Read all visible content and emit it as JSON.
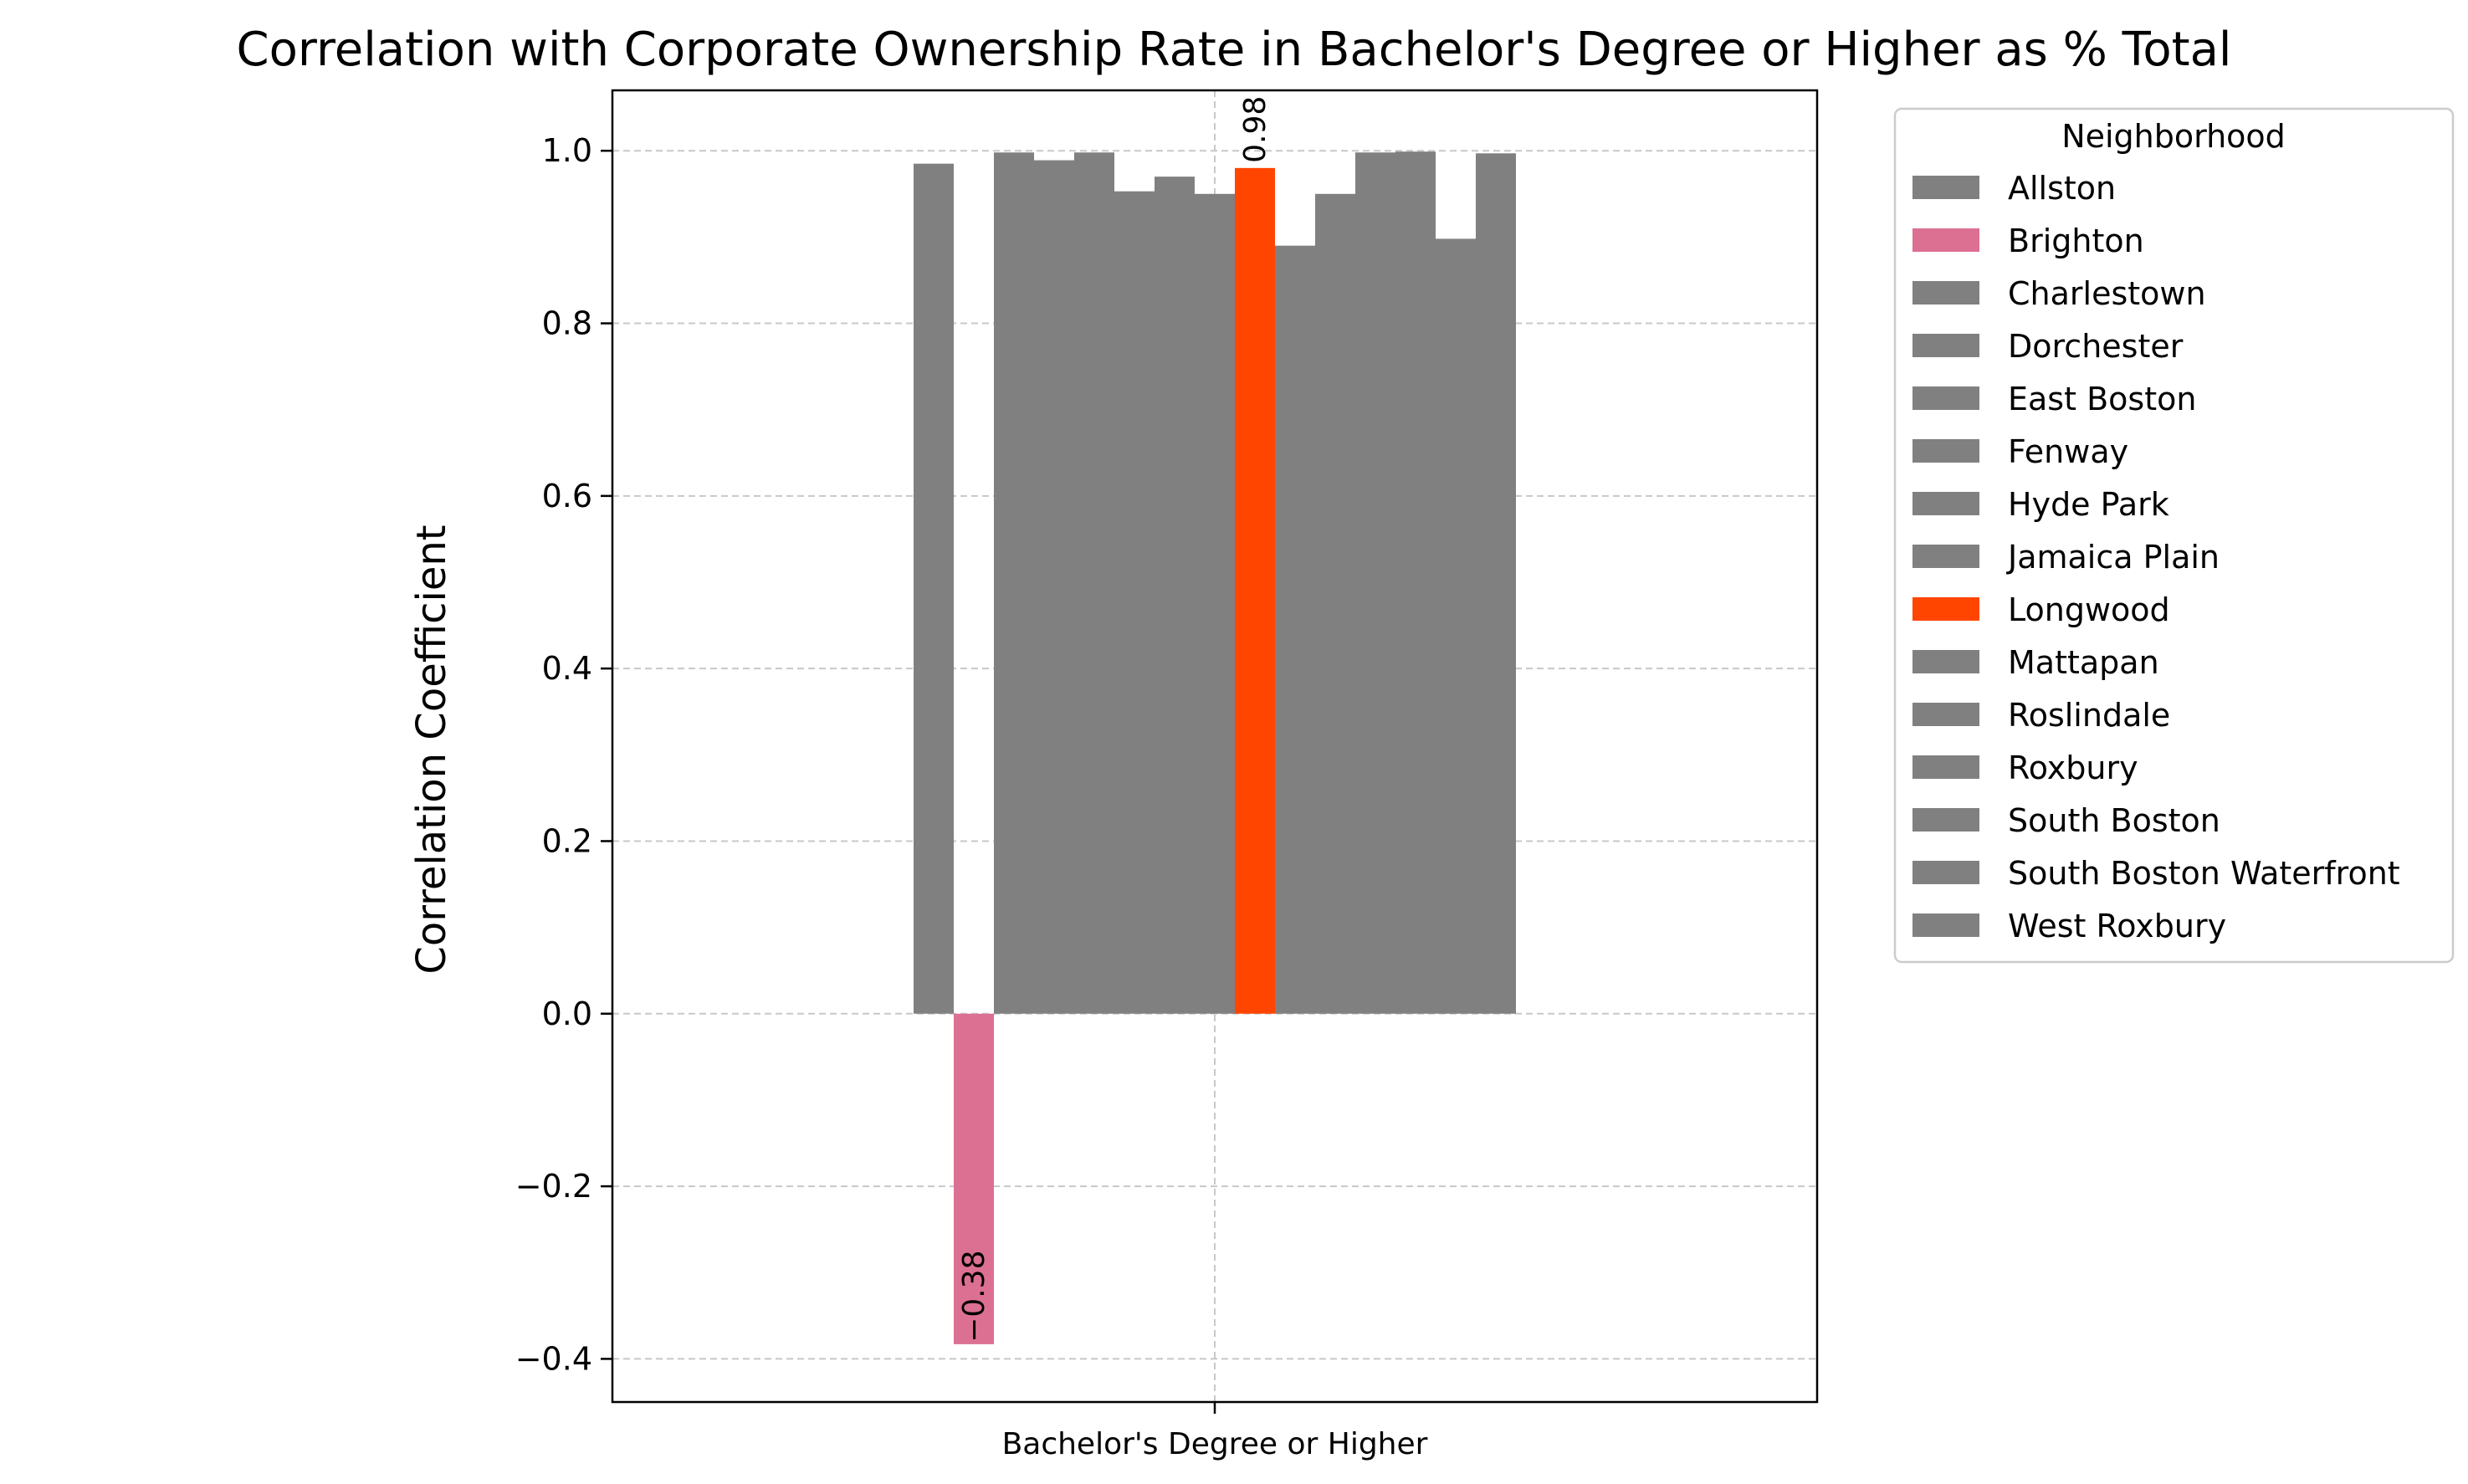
{
  "chart_data": {
    "type": "bar",
    "title": "Correlation with Corporate Ownership Rate in Bachelor's Degree or Higher as % Total",
    "xlabel": "",
    "ylabel": "Correlation Coefficient",
    "categories": [
      "Bachelor's Degree or Higher"
    ],
    "ylim": [
      -0.45,
      1.07
    ],
    "yticks": [
      -0.4,
      -0.2,
      0.0,
      0.2,
      0.4,
      0.6,
      0.8,
      1.0
    ],
    "ytick_labels": [
      "−0.4",
      "−0.2",
      "0.0",
      "0.2",
      "0.4",
      "0.6",
      "0.8",
      "1.0"
    ],
    "grid": true,
    "legend": {
      "title": "Neighborhood",
      "placement": "outside-top-right"
    },
    "series": [
      {
        "name": "Allston",
        "values": [
          0.985
        ],
        "color": "#808080"
      },
      {
        "name": "Brighton",
        "values": [
          -0.383
        ],
        "color": "#DC7092",
        "label": "−0.38"
      },
      {
        "name": "Charlestown",
        "values": [
          0.998
        ],
        "color": "#808080"
      },
      {
        "name": "Dorchester",
        "values": [
          0.989
        ],
        "color": "#808080"
      },
      {
        "name": "East Boston",
        "values": [
          0.998
        ],
        "color": "#808080"
      },
      {
        "name": "Fenway",
        "values": [
          0.953
        ],
        "color": "#808080"
      },
      {
        "name": "Hyde Park",
        "values": [
          0.97
        ],
        "color": "#808080"
      },
      {
        "name": "Jamaica Plain",
        "values": [
          0.95
        ],
        "color": "#808080"
      },
      {
        "name": "Longwood",
        "values": [
          0.98
        ],
        "color": "#FF4500",
        "label": "0.98"
      },
      {
        "name": "Mattapan",
        "values": [
          0.89
        ],
        "color": "#808080"
      },
      {
        "name": "Roslindale",
        "values": [
          0.95
        ],
        "color": "#808080"
      },
      {
        "name": "Roxbury",
        "values": [
          0.998
        ],
        "color": "#808080"
      },
      {
        "name": "South Boston",
        "values": [
          0.999
        ],
        "color": "#808080"
      },
      {
        "name": "South Boston Waterfront",
        "values": [
          0.898
        ],
        "color": "#808080"
      },
      {
        "name": "West Roxbury",
        "values": [
          0.997
        ],
        "color": "#808080"
      }
    ]
  }
}
